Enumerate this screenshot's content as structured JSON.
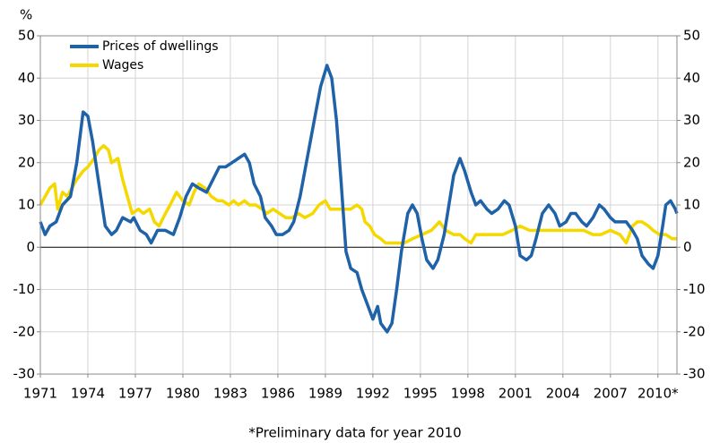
{
  "chart_data": {
    "type": "line",
    "y_label": "%",
    "footnote": "*Preliminary data for year 2010",
    "xlim": [
      1971,
      2011.2
    ],
    "xticks": [
      1971,
      1974,
      1977,
      1980,
      1983,
      1986,
      1989,
      1992,
      1995,
      1998,
      2001,
      2004,
      2007,
      {
        "value": 2010,
        "label": "2010*"
      }
    ],
    "ylim": [
      -30,
      50
    ],
    "yticks": [
      -30,
      -20,
      -10,
      0,
      10,
      20,
      30,
      40,
      50
    ],
    "y2lim": [
      -30,
      50
    ],
    "y2ticks": [
      -30,
      -20,
      -10,
      0,
      10,
      20,
      30,
      40,
      50
    ],
    "grid": true,
    "legend": "top-left",
    "series": [
      {
        "name": "Prices of dwellings",
        "color": "#1f62a8",
        "x": [
          1971.0,
          1971.3,
          1971.6,
          1972.0,
          1972.4,
          1972.9,
          1973.3,
          1973.7,
          1974.0,
          1974.3,
          1974.7,
          1975.1,
          1975.5,
          1975.8,
          1976.2,
          1976.7,
          1976.9,
          1977.3,
          1977.7,
          1978.0,
          1978.4,
          1978.9,
          1979.4,
          1979.8,
          1980.2,
          1980.6,
          1981.0,
          1981.5,
          1981.9,
          1982.3,
          1982.7,
          1983.1,
          1983.5,
          1983.9,
          1984.2,
          1984.5,
          1984.9,
          1985.2,
          1985.6,
          1985.9,
          1986.3,
          1986.7,
          1987.0,
          1987.4,
          1987.8,
          1988.3,
          1988.7,
          1989.1,
          1989.4,
          1989.7,
          1990.0,
          1990.3,
          1990.6,
          1991.0,
          1991.3,
          1991.7,
          1992.0,
          1992.3,
          1992.5,
          1992.9,
          1993.2,
          1993.5,
          1993.8,
          1994.2,
          1994.5,
          1994.8,
          1995.1,
          1995.4,
          1995.8,
          1996.1,
          1996.5,
          1996.8,
          1997.1,
          1997.5,
          1997.8,
          1998.2,
          1998.5,
          1998.8,
          1999.2,
          1999.5,
          1999.9,
          2000.3,
          2000.6,
          2001.0,
          2001.3,
          2001.7,
          2002.0,
          2002.3,
          2002.7,
          2003.1,
          2003.5,
          2003.8,
          2004.2,
          2004.5,
          2004.8,
          2005.2,
          2005.5,
          2005.9,
          2006.3,
          2006.6,
          2007.0,
          2007.3,
          2007.7,
          2008.0,
          2008.4,
          2008.7,
          2009.0,
          2009.4,
          2009.7,
          2010.0,
          2010.3,
          2010.5,
          2010.8,
          2011.1,
          2011.2
        ],
        "values": [
          6,
          3,
          5,
          6,
          10,
          12,
          20,
          32,
          31,
          25,
          15,
          5,
          3,
          4,
          7,
          6,
          7,
          4,
          3,
          1,
          4,
          4,
          3,
          7,
          12,
          15,
          14,
          13,
          16,
          19,
          19,
          20,
          21,
          22,
          20,
          15,
          12,
          7,
          5,
          3,
          3,
          4,
          6,
          12,
          20,
          30,
          38,
          43,
          40,
          30,
          15,
          -1,
          -5,
          -6,
          -10,
          -14,
          -17,
          -14,
          -18,
          -20,
          -18,
          -10,
          -1,
          8,
          10,
          8,
          2,
          -3,
          -5,
          -3,
          3,
          10,
          17,
          21,
          18,
          13,
          10,
          11,
          9,
          8,
          9,
          11,
          10,
          5,
          -2,
          -3,
          -2,
          2,
          8,
          10,
          8,
          5,
          6,
          8,
          8,
          6,
          5,
          7,
          10,
          9,
          7,
          6,
          6,
          6,
          4,
          2,
          -2,
          -4,
          -5,
          -2,
          5,
          10,
          11,
          9,
          8
        ]
      },
      {
        "name": "Wages",
        "color": "#f5d800",
        "x": [
          1971.0,
          1971.3,
          1971.6,
          1971.9,
          1972.1,
          1972.4,
          1972.7,
          1973.0,
          1973.3,
          1973.7,
          1974.0,
          1974.4,
          1974.7,
          1975.0,
          1975.3,
          1975.5,
          1975.9,
          1976.2,
          1976.5,
          1976.8,
          1977.2,
          1977.5,
          1977.9,
          1978.2,
          1978.5,
          1978.9,
          1979.2,
          1979.6,
          1980.0,
          1980.4,
          1980.7,
          1981.0,
          1981.4,
          1981.8,
          1982.2,
          1982.5,
          1982.9,
          1983.2,
          1983.5,
          1983.9,
          1984.2,
          1984.6,
          1985.0,
          1985.3,
          1985.7,
          1986.1,
          1986.5,
          1986.9,
          1987.3,
          1987.7,
          1988.2,
          1988.6,
          1989.0,
          1989.3,
          1989.7,
          1990.1,
          1990.6,
          1991.0,
          1991.3,
          1991.5,
          1991.8,
          1992.1,
          1992.5,
          1992.8,
          1993.4,
          1994.0,
          1994.5,
          1995.1,
          1995.7,
          1996.2,
          1996.6,
          1997.1,
          1997.5,
          1997.8,
          1998.2,
          1998.5,
          1999.1,
          1999.6,
          2000.2,
          2000.8,
          2001.3,
          2001.9,
          2002.5,
          2003.0,
          2003.6,
          2004.2,
          2004.7,
          2005.3,
          2005.9,
          2006.4,
          2007.0,
          2007.6,
          2008.0,
          2008.4,
          2008.7,
          2009.0,
          2009.4,
          2009.7,
          2010.1,
          2010.5,
          2010.9,
          2011.2
        ],
        "values": [
          10,
          12,
          14,
          15,
          9,
          13,
          12,
          14,
          16,
          18,
          19,
          21,
          23,
          24,
          23,
          20,
          21,
          16,
          12,
          8,
          9,
          8,
          9,
          6,
          5,
          8,
          10,
          13,
          11,
          10,
          13,
          15,
          14,
          12,
          11,
          11,
          10,
          11,
          10,
          11,
          10,
          10,
          9,
          8,
          9,
          8,
          7,
          7,
          8,
          7,
          8,
          10,
          11,
          9,
          9,
          9,
          9,
          10,
          9,
          6,
          5,
          3,
          2,
          1,
          1,
          1,
          2,
          3,
          4,
          6,
          4,
          3,
          3,
          2,
          1,
          3,
          3,
          3,
          3,
          4,
          5,
          4,
          4,
          4,
          4,
          4,
          4,
          4,
          3,
          3,
          4,
          3,
          1,
          5,
          6,
          6,
          5,
          4,
          3,
          3,
          2,
          2
        ]
      }
    ]
  }
}
